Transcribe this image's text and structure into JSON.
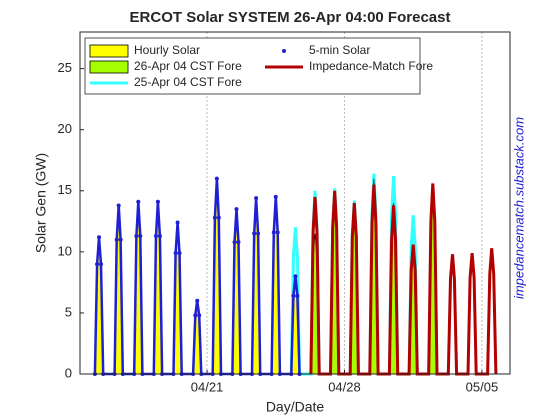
{
  "chart_data": {
    "type": "line",
    "title": "ERCOT Solar SYSTEM  26-Apr 04:00 Forecast",
    "x_label": "Day/Date",
    "y_label": "Solar Gen (GW)",
    "annotation": "impedancematch.substack.com",
    "xlim": [
      14.53,
      36.43
    ],
    "ylim": [
      0,
      28
    ],
    "xticks": [
      {
        "value": 21,
        "label": "04/21"
      },
      {
        "value": 28,
        "label": "04/28"
      },
      {
        "value": 35,
        "label": "05/05"
      }
    ],
    "yticks": [
      0,
      5,
      10,
      15,
      20,
      25
    ],
    "xgrid": true,
    "legend": "upper left",
    "series": [
      {
        "name": "Hourly Solar",
        "color": "#ffff00",
        "style": "area",
        "x": [
          15.29,
          15.4,
          15.5,
          15.6,
          15.71,
          16.29,
          16.4,
          16.5,
          16.6,
          16.71,
          17.29,
          17.4,
          17.5,
          17.6,
          17.71,
          18.29,
          18.4,
          18.5,
          18.6,
          18.71,
          19.29,
          19.4,
          19.5,
          19.6,
          19.71,
          20.29,
          20.4,
          20.5,
          20.6,
          20.71,
          21.29,
          21.4,
          21.5,
          21.6,
          21.71,
          22.29,
          22.4,
          22.5,
          22.6,
          22.71,
          23.29,
          23.4,
          23.5,
          23.6,
          23.71,
          24.29,
          24.4,
          24.5,
          24.6,
          24.71,
          25.29,
          25.4,
          25.5,
          25.6,
          25.71
        ],
        "values": [
          0,
          8.8,
          11,
          8.8,
          0,
          0,
          10.8,
          13.5,
          10.8,
          0,
          0,
          11.2,
          14,
          11.2,
          0,
          0,
          11.2,
          14,
          11.2,
          0,
          0,
          9.6,
          12,
          9.6,
          0,
          0,
          4.4,
          5.5,
          4.4,
          0,
          0,
          12.4,
          15.5,
          12.4,
          0,
          0,
          10.4,
          13,
          10.4,
          0,
          0,
          11.2,
          14,
          11.2,
          0,
          0,
          11.2,
          14,
          11.2,
          0,
          0,
          6,
          7.5,
          6,
          0
        ]
      },
      {
        "name": "5-min Solar",
        "color": "#1f1fd6",
        "style": "dots",
        "x": [
          15.29,
          15.4,
          15.5,
          15.6,
          15.71,
          16.29,
          16.4,
          16.5,
          16.6,
          16.71,
          17.29,
          17.4,
          17.5,
          17.6,
          17.71,
          18.29,
          18.4,
          18.5,
          18.6,
          18.71,
          19.29,
          19.4,
          19.5,
          19.6,
          19.71,
          20.29,
          20.4,
          20.5,
          20.6,
          20.71,
          21.29,
          21.4,
          21.5,
          21.6,
          21.71,
          22.29,
          22.4,
          22.5,
          22.6,
          22.71,
          23.29,
          23.4,
          23.5,
          23.6,
          23.71,
          24.29,
          24.4,
          24.5,
          24.6,
          24.71,
          25.29,
          25.4,
          25.5,
          25.6,
          25.71
        ],
        "values": [
          0,
          9,
          11.2,
          9,
          0,
          0,
          11,
          13.8,
          11,
          0,
          0,
          11.3,
          14.1,
          11.3,
          0,
          0,
          11.3,
          14.1,
          11.3,
          0,
          0,
          9.9,
          12.4,
          9.9,
          0,
          0,
          4.8,
          6,
          4.8,
          0,
          0,
          12.8,
          16,
          12.8,
          0,
          0,
          10.8,
          13.5,
          10.8,
          0,
          0,
          11.5,
          14.4,
          11.5,
          0,
          0,
          11.6,
          14.5,
          11.6,
          0,
          0,
          6.4,
          8,
          6.4,
          0
        ]
      },
      {
        "name": "26-Apr 04 CST Fore",
        "color": "#a6ff00",
        "style": "area",
        "x": [
          26.29,
          26.4,
          26.5,
          26.6,
          26.71,
          27.29,
          27.4,
          27.5,
          27.6,
          27.71,
          28.29,
          28.4,
          28.5,
          28.6,
          28.71,
          29.29,
          29.4,
          29.5,
          29.6,
          29.71,
          30.29,
          30.4,
          30.5,
          30.6,
          30.71,
          31.29,
          31.4,
          31.5,
          31.6,
          31.71,
          32.29,
          32.4,
          32.5,
          32.6,
          32.71
        ],
        "values": [
          0,
          9.2,
          11.5,
          9.2,
          0,
          0,
          11.6,
          14.5,
          11.6,
          0,
          0,
          11.2,
          14,
          11.2,
          0,
          0,
          12.8,
          16,
          12.8,
          0,
          0,
          11.2,
          14,
          11.2,
          0,
          0,
          8.4,
          10.5,
          8.4,
          0,
          0,
          11.4,
          14.3,
          11.4,
          0
        ]
      },
      {
        "name": "Impedance-Match Fore",
        "color": "#b30000",
        "style": "line",
        "x": [
          26.29,
          26.4,
          26.5,
          26.6,
          26.71,
          27.29,
          27.4,
          27.5,
          27.6,
          27.71,
          28.29,
          28.4,
          28.5,
          28.6,
          28.71,
          29.29,
          29.4,
          29.5,
          29.6,
          29.71,
          30.29,
          30.4,
          30.5,
          30.6,
          30.71,
          31.29,
          31.4,
          31.5,
          31.6,
          31.71,
          32.29,
          32.4,
          32.5,
          32.6,
          32.71,
          33.29,
          33.4,
          33.5,
          33.6,
          33.71,
          34.29,
          34.4,
          34.5,
          34.6,
          34.71,
          35.29,
          35.4,
          35.5,
          35.6,
          35.71
        ],
        "values": [
          0,
          11.6,
          14.5,
          11.6,
          0,
          0,
          12,
          15,
          12,
          0,
          0,
          11.2,
          14,
          11.2,
          0,
          0,
          12.4,
          15.5,
          12.4,
          0,
          0,
          11,
          13.8,
          11,
          0,
          0,
          8.5,
          10.6,
          8.5,
          0,
          0,
          12.5,
          15.6,
          12.5,
          0,
          0,
          7.8,
          9.8,
          7.8,
          0,
          0,
          7.9,
          9.9,
          7.9,
          0,
          0,
          8.2,
          10.3,
          8.2,
          0
        ]
      },
      {
        "name": "25-Apr 04 CST Fore",
        "color": "#33ffff",
        "style": "line",
        "x": [
          25.29,
          25.4,
          25.5,
          25.6,
          25.71,
          26.29,
          26.4,
          26.5,
          26.6,
          26.71,
          27.29,
          27.4,
          27.5,
          27.6,
          27.71,
          28.29,
          28.4,
          28.5,
          28.6,
          28.71,
          29.29,
          29.4,
          29.5,
          29.6,
          29.71,
          30.29,
          30.4,
          30.5,
          30.6,
          30.71,
          31.29,
          31.4,
          31.5,
          31.6,
          31.71,
          32.29,
          32.4,
          32.5,
          32.6,
          32.71
        ],
        "values": [
          0,
          9.6,
          12,
          9.6,
          0,
          0,
          12,
          15,
          12,
          0,
          0,
          12.2,
          15.2,
          12.2,
          0,
          0,
          11.4,
          14.2,
          11.4,
          0,
          0,
          13.1,
          16.4,
          13.1,
          0,
          0,
          13,
          16.2,
          13,
          0,
          0,
          10.4,
          13,
          10.4,
          0,
          0,
          11.5,
          14.4,
          11.5,
          0
        ]
      }
    ]
  }
}
